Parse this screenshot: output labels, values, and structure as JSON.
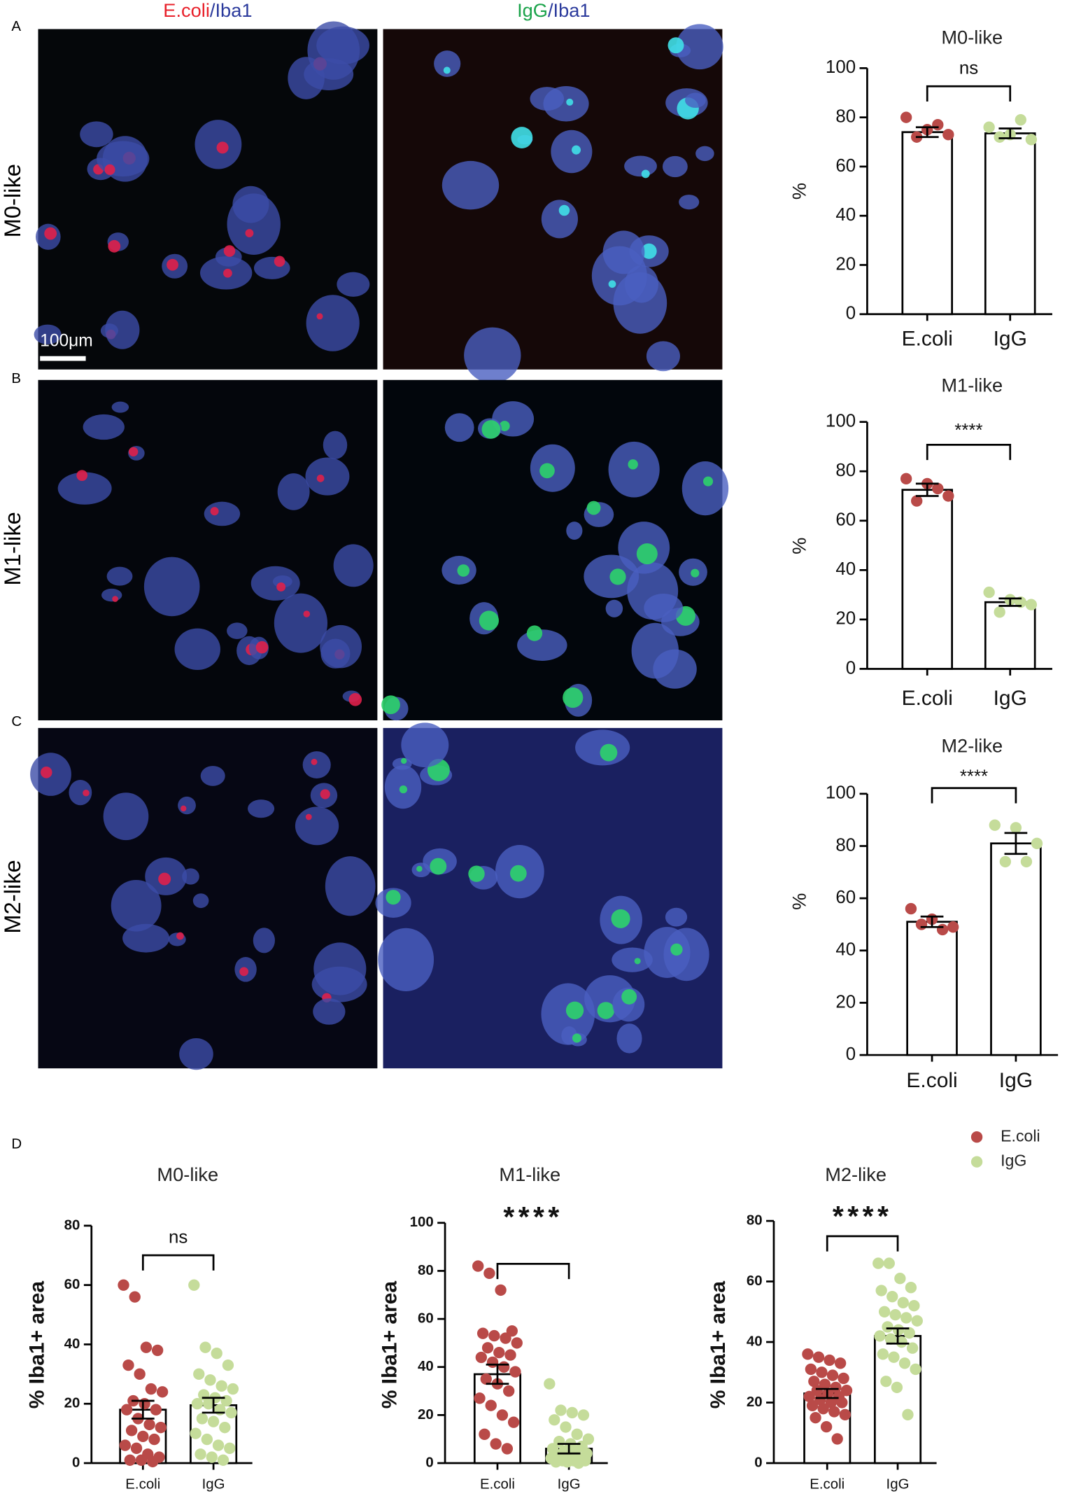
{
  "figure": {
    "columns": [
      {
        "stain": "E.coli",
        "counter": "/Iba1"
      },
      {
        "stain": "IgG",
        "counter": "/Iba1"
      }
    ],
    "panels": [
      "A",
      "B",
      "C",
      "D"
    ],
    "rows": [
      "M0-like",
      "M1-like",
      "M2-like"
    ],
    "scale_bar": "100μm",
    "legend": [
      {
        "name": "E.coli",
        "color": "#b94a48"
      },
      {
        "name": "IgG",
        "color": "#c5dc9a"
      }
    ]
  },
  "chart_data": [
    {
      "type": "bar",
      "title": "M0-like",
      "y_label": "%",
      "categories": [
        "E.coli",
        "IgG"
      ],
      "values": [
        74,
        73.5
      ],
      "errors": [
        2,
        2
      ],
      "points": [
        [
          80,
          75,
          73,
          72,
          77
        ],
        [
          76,
          73,
          71,
          72,
          79
        ]
      ],
      "point_colors": [
        "#b94a48",
        "#c5dc9a"
      ],
      "annotation": "ns",
      "ylim": [
        0,
        100
      ],
      "yticks": [
        0,
        20,
        40,
        60,
        80,
        100
      ]
    },
    {
      "type": "bar",
      "title": "M1-like",
      "y_label": "%",
      "categories": [
        "E.coli",
        "IgG"
      ],
      "values": [
        72.5,
        27
      ],
      "errors": [
        2.5,
        1.5
      ],
      "points": [
        [
          77,
          75,
          70,
          68,
          73
        ],
        [
          31,
          28,
          26,
          23,
          27
        ]
      ],
      "point_colors": [
        "#b94a48",
        "#c5dc9a"
      ],
      "annotation": "****",
      "ylim": [
        0,
        100
      ],
      "yticks": [
        0,
        20,
        40,
        60,
        80,
        100
      ]
    },
    {
      "type": "bar",
      "title": "M2-like",
      "y_label": "%",
      "categories": [
        "E.coli",
        "IgG"
      ],
      "values": [
        51,
        81
      ],
      "errors": [
        2,
        4
      ],
      "points": [
        [
          56,
          52,
          49,
          50,
          48
        ],
        [
          88,
          87,
          81,
          74,
          74
        ]
      ],
      "point_colors": [
        "#b94a48",
        "#c5dc9a"
      ],
      "annotation": "****",
      "ylim": [
        0,
        100
      ],
      "yticks": [
        0,
        20,
        40,
        60,
        80,
        100
      ]
    },
    {
      "type": "bar",
      "title": "M0-like",
      "y_label": "% Iba1+ area",
      "categories": [
        "E.coli",
        "IgG"
      ],
      "values": [
        18,
        19.5
      ],
      "errors": [
        3,
        2.5
      ],
      "points": [
        [
          60,
          56,
          39,
          38,
          33,
          30,
          25,
          24,
          21,
          20,
          18,
          18,
          15,
          13,
          12,
          11,
          9,
          8,
          6,
          5,
          3,
          2,
          1,
          1,
          0.5
        ],
        [
          60,
          39,
          37,
          33,
          30,
          28,
          26,
          25,
          23,
          22,
          21,
          20,
          20,
          18,
          17,
          15,
          14,
          12,
          10,
          8,
          6,
          5,
          3,
          2,
          1
        ]
      ],
      "point_colors": [
        "#b94a48",
        "#c5dc9a"
      ],
      "annotation": "ns",
      "ylim": [
        0,
        80
      ],
      "yticks": [
        0,
        20,
        40,
        60,
        80
      ]
    },
    {
      "type": "bar",
      "title": "M1-like",
      "y_label": "% Iba1+ area",
      "categories": [
        "E.coli",
        "IgG"
      ],
      "values": [
        37,
        6
      ],
      "errors": [
        4,
        2
      ],
      "points": [
        [
          82,
          79,
          72,
          55,
          54,
          53,
          52,
          50,
          48,
          46,
          45,
          44,
          42,
          40,
          38,
          35,
          33,
          30,
          27,
          24,
          20,
          17,
          12,
          8,
          6
        ],
        [
          33,
          22,
          21,
          20,
          18,
          15,
          12,
          10,
          9,
          8,
          7,
          6,
          5,
          5,
          4,
          3,
          3,
          2,
          2,
          1,
          1,
          1,
          0.5,
          0.5,
          0
        ]
      ],
      "point_colors": [
        "#b94a48",
        "#c5dc9a"
      ],
      "annotation": "****",
      "ylim": [
        0,
        100
      ],
      "yticks": [
        0,
        20,
        40,
        60,
        80,
        100
      ]
    },
    {
      "type": "bar",
      "title": "M2-like",
      "y_label": "% Iba1+ area",
      "categories": [
        "E.coli",
        "IgG"
      ],
      "values": [
        23,
        42
      ],
      "errors": [
        1.5,
        2.5
      ],
      "points": [
        [
          36,
          35,
          34,
          33,
          31,
          30,
          29,
          28,
          27,
          26,
          25,
          24,
          24,
          23,
          22,
          22,
          21,
          20,
          20,
          19,
          18,
          17,
          16,
          15,
          12,
          8
        ],
        [
          66,
          66,
          61,
          58,
          57,
          55,
          53,
          52,
          50,
          49,
          48,
          47,
          45,
          44,
          43,
          42,
          41,
          40,
          38,
          36,
          35,
          33,
          31,
          27,
          25,
          16
        ]
      ],
      "point_colors": [
        "#b94a48",
        "#c5dc9a"
      ],
      "annotation": "****",
      "ylim": [
        0,
        80
      ],
      "yticks": [
        0,
        20,
        40,
        60,
        80
      ]
    }
  ]
}
